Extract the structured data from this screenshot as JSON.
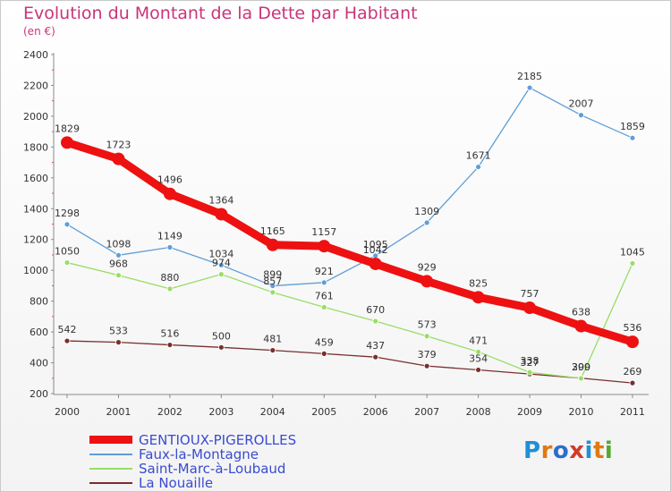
{
  "header": {
    "title": "Evolution du Montant de la Dette par Habitant",
    "unit": "(en €)"
  },
  "logo": {
    "letters": [
      "P",
      "r",
      "o",
      "x",
      "i",
      "t",
      "i"
    ],
    "colors": [
      "#1f8fd6",
      "#e07a14",
      "#2b6fc9",
      "#d23b2b",
      "#1f8fd6",
      "#e07a14",
      "#54a832"
    ]
  },
  "chart_data": {
    "type": "line",
    "title": "Evolution du Montant de la Dette par Habitant",
    "ylabel": "(en €)",
    "xlabel": "",
    "ylim": [
      200,
      2400
    ],
    "yticks": [
      200,
      400,
      600,
      800,
      1000,
      1200,
      1400,
      1600,
      1800,
      2000,
      2200,
      2400
    ],
    "grid": false,
    "legend_position": "bottom-left",
    "x": [
      "2000",
      "2001",
      "2002",
      "2003",
      "2004",
      "2005",
      "2006",
      "2007",
      "2008",
      "2009",
      "2010",
      "2011"
    ],
    "series": [
      {
        "name": "GENTIOUX-PIGEROLLES",
        "color": "#ee1111",
        "emphasis": true,
        "values": [
          1829,
          1723,
          1496,
          1364,
          1165,
          1157,
          1042,
          929,
          825,
          757,
          638,
          536
        ],
        "labels": [
          "1829",
          "1723",
          "1496",
          "1364",
          "1165",
          "1157",
          "1042",
          "929",
          "825",
          "757",
          "638",
          "536"
        ]
      },
      {
        "name": "Faux-la-Montagne",
        "color": "#5f9ed8",
        "emphasis": false,
        "values": [
          1298,
          1098,
          1149,
          1034,
          899,
          921,
          1095,
          1309,
          1671,
          2185,
          2007,
          1859
        ],
        "labels": [
          "1298",
          "1098",
          "1149",
          "1034",
          "899",
          "921",
          "1095",
          "1309",
          "1671",
          "2185",
          "2007",
          "1859"
        ]
      },
      {
        "name": "Saint-Marc-à-Loubaud",
        "color": "#99dd66",
        "emphasis": false,
        "values": [
          1050,
          968,
          880,
          974,
          857,
          761,
          670,
          573,
          471,
          338,
          299,
          1045
        ],
        "labels": [
          "1050",
          "968",
          "880",
          "974",
          "857",
          "761",
          "670",
          "573",
          "471",
          "338",
          "299",
          "1045"
        ]
      },
      {
        "name": "La Nouaille",
        "color": "#7a2e2e",
        "emphasis": false,
        "values": [
          542,
          533,
          516,
          500,
          481,
          459,
          437,
          379,
          354,
          327,
          300,
          269
        ],
        "labels": [
          "542",
          "533",
          "516",
          "500",
          "481",
          "459",
          "437",
          "379",
          "354",
          "327",
          "300",
          "269"
        ]
      }
    ]
  }
}
